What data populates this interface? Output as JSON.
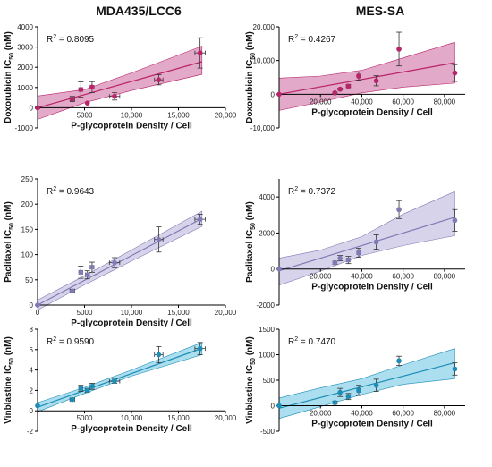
{
  "columns": [
    "MDA435/LCC6",
    "MES-SA"
  ],
  "chart_data": [
    {
      "type": "scatter",
      "col": 0,
      "row": 0,
      "xlabel": "P-glycoprotein Density / Cell",
      "ylabel_main": "Doxorubicin IC",
      "ylabel_sub": "50",
      "ylabel_unit": " (nM)",
      "r2_label": "R",
      "r2_exp": "2",
      "r2_value": " = 0.8095",
      "xlim": [
        0,
        20000
      ],
      "ylim": [
        -1000,
        4000
      ],
      "xticks": [
        0,
        5000,
        10000,
        15000,
        20000
      ],
      "xtick_labels": [
        "",
        "5000",
        "10,000",
        "15,000",
        "20,000"
      ],
      "yticks": [
        -1000,
        0,
        1000,
        2000,
        3000,
        4000
      ],
      "ytick_labels": [
        "-1000",
        "0",
        "1000",
        "2000",
        "3000",
        "4000"
      ],
      "color": "#b8246a",
      "band_color": "#d98cb5",
      "fit": {
        "slope": 0.13,
        "intercept": 0
      },
      "band": {
        "x": [
          0,
          5000,
          10000,
          17500
        ],
        "lower": [
          -580,
          250,
          850,
          1650
        ],
        "upper": [
          580,
          900,
          1720,
          3050
        ]
      },
      "points": [
        {
          "x": 0,
          "y": 0,
          "yerr": 40,
          "xerr": 0
        },
        {
          "x": 3700,
          "y": 430,
          "yerr": 130,
          "xerr": 250
        },
        {
          "x": 4600,
          "y": 900,
          "yerr": 380,
          "xerr": 200
        },
        {
          "x": 5300,
          "y": 230,
          "yerr": 0,
          "xerr": 0
        },
        {
          "x": 5800,
          "y": 1020,
          "yerr": 270,
          "xerr": 200
        },
        {
          "x": 8200,
          "y": 560,
          "yerr": 180,
          "xerr": 550
        },
        {
          "x": 12900,
          "y": 1380,
          "yerr": 250,
          "xerr": 450
        },
        {
          "x": 17300,
          "y": 2710,
          "yerr": 750,
          "xerr": 550
        }
      ]
    },
    {
      "type": "scatter",
      "col": 1,
      "row": 0,
      "xlabel": "P-glycoprotein Density / Cell",
      "ylabel_main": "Doxorubicin IC",
      "ylabel_sub": "50",
      "ylabel_unit": " (nM)",
      "r2_label": "R",
      "r2_exp": "2",
      "r2_value": " = 0.4267",
      "xlim": [
        0,
        90000
      ],
      "ylim": [
        -10000,
        20000
      ],
      "xticks": [
        0,
        20000,
        40000,
        60000,
        80000
      ],
      "xtick_labels": [
        "",
        "20,000",
        "40,000",
        "60,000",
        "80,000"
      ],
      "yticks": [
        -10000,
        0,
        10000,
        20000
      ],
      "ytick_labels": [
        "-10,000",
        "0",
        "10,000",
        "20,000"
      ],
      "color": "#b8246a",
      "band_color": "#d98cb5",
      "fit": {
        "slope": 0.11,
        "intercept": 0
      },
      "band": {
        "x": [
          0,
          20000,
          40000,
          60000,
          85000
        ],
        "lower": [
          -4800,
          -2300,
          400,
          2100,
          3300
        ],
        "upper": [
          4800,
          5400,
          7100,
          10800,
          15400
        ]
      },
      "points": [
        {
          "x": 0,
          "y": 0,
          "yerr": 0,
          "xerr": 0
        },
        {
          "x": 27000,
          "y": 400,
          "yerr": 200,
          "xerr": 500
        },
        {
          "x": 29500,
          "y": 1500,
          "yerr": 300,
          "xerr": 500
        },
        {
          "x": 33500,
          "y": 2400,
          "yerr": 400,
          "xerr": 800
        },
        {
          "x": 38500,
          "y": 5400,
          "yerr": 1200,
          "xerr": 800
        },
        {
          "x": 47000,
          "y": 4000,
          "yerr": 1500,
          "xerr": 600
        },
        {
          "x": 58000,
          "y": 13400,
          "yerr": 5000,
          "xerr": 600
        },
        {
          "x": 85000,
          "y": 6300,
          "yerr": 2500,
          "xerr": 600
        }
      ]
    },
    {
      "type": "scatter",
      "col": 0,
      "row": 1,
      "xlabel": "P-glycoprotein Density / Cell",
      "ylabel_main": "Paclitaxel IC",
      "ylabel_sub": "50",
      "ylabel_unit": " (nM)",
      "r2_label": "R",
      "r2_exp": "2",
      "r2_value": " = 0.9643",
      "xlim": [
        0,
        20000
      ],
      "ylim": [
        0,
        250
      ],
      "xticks": [
        0,
        5000,
        10000,
        15000,
        20000
      ],
      "xtick_labels": [
        "0",
        "5000",
        "10,000",
        "15,000",
        "20,000"
      ],
      "yticks": [
        0,
        50,
        100,
        150,
        200,
        250
      ],
      "ytick_labels": [
        "0",
        "50",
        "100",
        "150",
        "200",
        "250"
      ],
      "color": "#7f7bb5",
      "band_color": "#c9c4e3",
      "fit": {
        "slope": 0.0098,
        "intercept": 0
      },
      "band": {
        "x": [
          0,
          5000,
          10000,
          17500
        ],
        "lower": [
          -10,
          40,
          87,
          156
        ],
        "upper": [
          10,
          58,
          109,
          186
        ]
      },
      "points": [
        {
          "x": 0,
          "y": 0,
          "yerr": 0,
          "xerr": 0
        },
        {
          "x": 3700,
          "y": 28,
          "yerr": 3,
          "xerr": 250
        },
        {
          "x": 4600,
          "y": 65,
          "yerr": 12,
          "xerr": 200
        },
        {
          "x": 5300,
          "y": 60,
          "yerr": 8,
          "xerr": 200
        },
        {
          "x": 5800,
          "y": 75,
          "yerr": 10,
          "xerr": 200
        },
        {
          "x": 8200,
          "y": 84,
          "yerr": 10,
          "xerr": 550
        },
        {
          "x": 12900,
          "y": 130,
          "yerr": 25,
          "xerr": 450
        },
        {
          "x": 17300,
          "y": 170,
          "yerr": 10,
          "xerr": 550
        }
      ]
    },
    {
      "type": "scatter",
      "col": 1,
      "row": 1,
      "xlabel": "P-glycoprotein Density / Cell",
      "ylabel_main": "Paclitaxel IC",
      "ylabel_sub": "50",
      "ylabel_unit": " (nM)",
      "r2_label": "R",
      "r2_exp": "2",
      "r2_value": " = 0.7372",
      "xlim": [
        0,
        90000
      ],
      "ylim": [
        -2000,
        5000
      ],
      "xticks": [
        0,
        20000,
        40000,
        60000,
        80000
      ],
      "xtick_labels": [
        "",
        "20,000",
        "40,000",
        "60,000",
        "80,000"
      ],
      "yticks": [
        -2000,
        0,
        2000,
        4000
      ],
      "ytick_labels": [
        "-2000",
        "0",
        "2000",
        "4000"
      ],
      "color": "#7f7bb5",
      "band_color": "#c9c4e3",
      "fit": {
        "slope": 0.035,
        "intercept": -100
      },
      "band": {
        "x": [
          0,
          20000,
          40000,
          60000,
          85000
        ],
        "lower": [
          -900,
          -120,
          750,
          1300,
          1850
        ],
        "upper": [
          600,
          1050,
          1800,
          3050,
          4300
        ]
      },
      "points": [
        {
          "x": 0,
          "y": 0,
          "yerr": 0,
          "xerr": 0
        },
        {
          "x": 27000,
          "y": 350,
          "yerr": 80,
          "xerr": 500
        },
        {
          "x": 29500,
          "y": 600,
          "yerr": 150,
          "xerr": 500
        },
        {
          "x": 33500,
          "y": 500,
          "yerr": 200,
          "xerr": 800
        },
        {
          "x": 38500,
          "y": 900,
          "yerr": 250,
          "xerr": 800
        },
        {
          "x": 47000,
          "y": 1500,
          "yerr": 400,
          "xerr": 600
        },
        {
          "x": 58000,
          "y": 3300,
          "yerr": 500,
          "xerr": 600
        },
        {
          "x": 85000,
          "y": 2700,
          "yerr": 600,
          "xerr": 600
        }
      ]
    },
    {
      "type": "scatter",
      "col": 0,
      "row": 2,
      "xlabel": "P-glycoprotein Density / Cell",
      "ylabel_main": "Vinblastine IC",
      "ylabel_sub": "50",
      "ylabel_unit": " (nM)",
      "r2_label": "R",
      "r2_exp": "2",
      "r2_value": " = 0.9590",
      "xlim": [
        0,
        20000
      ],
      "ylim": [
        -2,
        8
      ],
      "xticks": [
        0,
        5000,
        10000,
        15000,
        20000
      ],
      "xtick_labels": [
        "",
        "5000",
        "10,000",
        "15,000",
        "20,000"
      ],
      "yticks": [
        -2,
        0,
        2,
        4,
        6,
        8
      ],
      "ytick_labels": [
        "-2",
        "0",
        "2",
        "4",
        "6",
        "8"
      ],
      "color": "#1e8db5",
      "band_color": "#8fd3ea",
      "fit": {
        "slope": 0.00033,
        "intercept": 0.35
      },
      "band": {
        "x": [
          0,
          5000,
          10000,
          17500
        ],
        "lower": [
          -0.1,
          1.7,
          3.4,
          5.5
        ],
        "upper": [
          0.8,
          2.3,
          4.0,
          6.7
        ]
      },
      "points": [
        {
          "x": 0,
          "y": 0.5,
          "yerr": 0,
          "xerr": 0
        },
        {
          "x": 3700,
          "y": 1.1,
          "yerr": 0.1,
          "xerr": 250
        },
        {
          "x": 4600,
          "y": 2.2,
          "yerr": 0.3,
          "xerr": 200
        },
        {
          "x": 5300,
          "y": 2.0,
          "yerr": 0.2,
          "xerr": 200
        },
        {
          "x": 5800,
          "y": 2.4,
          "yerr": 0.3,
          "xerr": 200
        },
        {
          "x": 8200,
          "y": 2.9,
          "yerr": 0.2,
          "xerr": 550
        },
        {
          "x": 12900,
          "y": 5.5,
          "yerr": 0.8,
          "xerr": 450
        },
        {
          "x": 17300,
          "y": 6.1,
          "yerr": 0.6,
          "xerr": 550
        }
      ]
    },
    {
      "type": "scatter",
      "col": 1,
      "row": 2,
      "xlabel": "P-glycoprotein Density / Cell",
      "ylabel_main": "Vinblastine IC",
      "ylabel_sub": "50",
      "ylabel_unit": " (nM)",
      "r2_label": "R",
      "r2_exp": "2",
      "r2_value": " = 0.7470",
      "xlim": [
        0,
        90000
      ],
      "ylim": [
        -500,
        1500
      ],
      "xticks": [
        0,
        20000,
        40000,
        60000,
        80000
      ],
      "xtick_labels": [
        "",
        "20,000",
        "40,000",
        "60,000",
        "80,000"
      ],
      "yticks": [
        -500,
        0,
        500,
        1000,
        1500
      ],
      "ytick_labels": [
        "-500",
        "0",
        "500",
        "1000",
        "1500"
      ],
      "color": "#1e8db5",
      "band_color": "#8fd3ea",
      "fit": {
        "slope": 0.0105,
        "intercept": -50
      },
      "band": {
        "x": [
          0,
          20000,
          40000,
          60000,
          85000
        ],
        "lower": [
          -250,
          -20,
          220,
          420,
          530
        ],
        "upper": [
          150,
          350,
          530,
          800,
          1120
        ]
      },
      "points": [
        {
          "x": 0,
          "y": 0,
          "yerr": 0,
          "xerr": 0
        },
        {
          "x": 27000,
          "y": 60,
          "yerr": 30,
          "xerr": 500
        },
        {
          "x": 29500,
          "y": 260,
          "yerr": 80,
          "xerr": 500
        },
        {
          "x": 33500,
          "y": 180,
          "yerr": 60,
          "xerr": 800
        },
        {
          "x": 38500,
          "y": 300,
          "yerr": 100,
          "xerr": 800
        },
        {
          "x": 47000,
          "y": 400,
          "yerr": 120,
          "xerr": 600
        },
        {
          "x": 58000,
          "y": 880,
          "yerr": 90,
          "xerr": 600
        },
        {
          "x": 85000,
          "y": 720,
          "yerr": 120,
          "xerr": 600
        }
      ]
    }
  ]
}
